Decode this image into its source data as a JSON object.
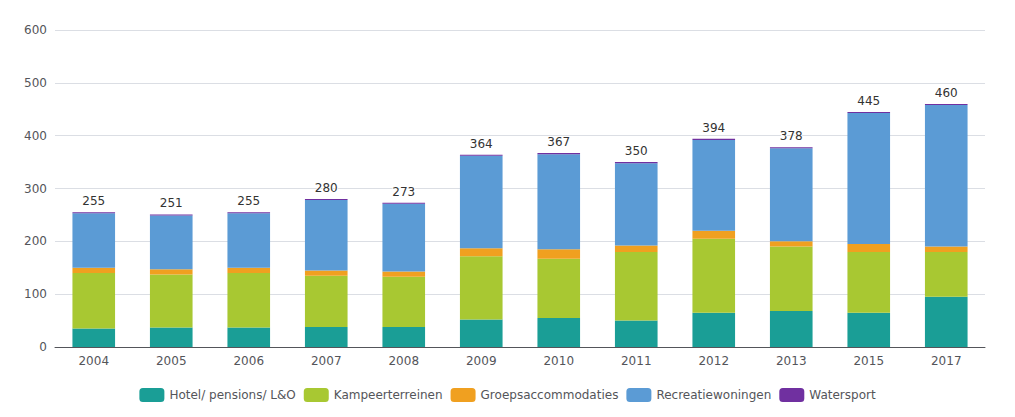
{
  "chart_data": {
    "type": "bar",
    "stacked": true,
    "categories": [
      "2004",
      "2005",
      "2006",
      "2007",
      "2008",
      "2009",
      "2010",
      "2011",
      "2012",
      "2013",
      "2015",
      "2017"
    ],
    "series": [
      {
        "name": "Hotel/ pensions/ L&O",
        "color": "#1a9e96",
        "values": [
          35,
          37,
          37,
          38,
          38,
          52,
          55,
          50,
          65,
          68,
          65,
          95
        ]
      },
      {
        "name": "Kampeerterreinen",
        "color": "#a8c832",
        "values": [
          105,
          100,
          103,
          97,
          95,
          120,
          112,
          130,
          140,
          122,
          115,
          85
        ]
      },
      {
        "name": "Groepsaccommodaties",
        "color": "#f0a020",
        "values": [
          10,
          10,
          10,
          10,
          10,
          15,
          18,
          12,
          15,
          10,
          15,
          10
        ]
      },
      {
        "name": "Recreatiewoningen",
        "color": "#5b9bd5",
        "values": [
          103,
          102,
          103,
          133,
          128,
          175,
          180,
          156,
          172,
          176,
          248,
          268
        ]
      },
      {
        "name": "Watersport",
        "color": "#7030a0",
        "values": [
          2,
          2,
          2,
          2,
          2,
          2,
          2,
          2,
          2,
          2,
          2,
          2
        ]
      }
    ],
    "totals": [
      255,
      251,
      255,
      280,
      273,
      364,
      367,
      350,
      394,
      378,
      445,
      460
    ],
    "ylim": [
      0,
      600
    ],
    "yticks": [
      0,
      100,
      200,
      300,
      400,
      500,
      600
    ],
    "grid": true,
    "legend": "bottom"
  }
}
